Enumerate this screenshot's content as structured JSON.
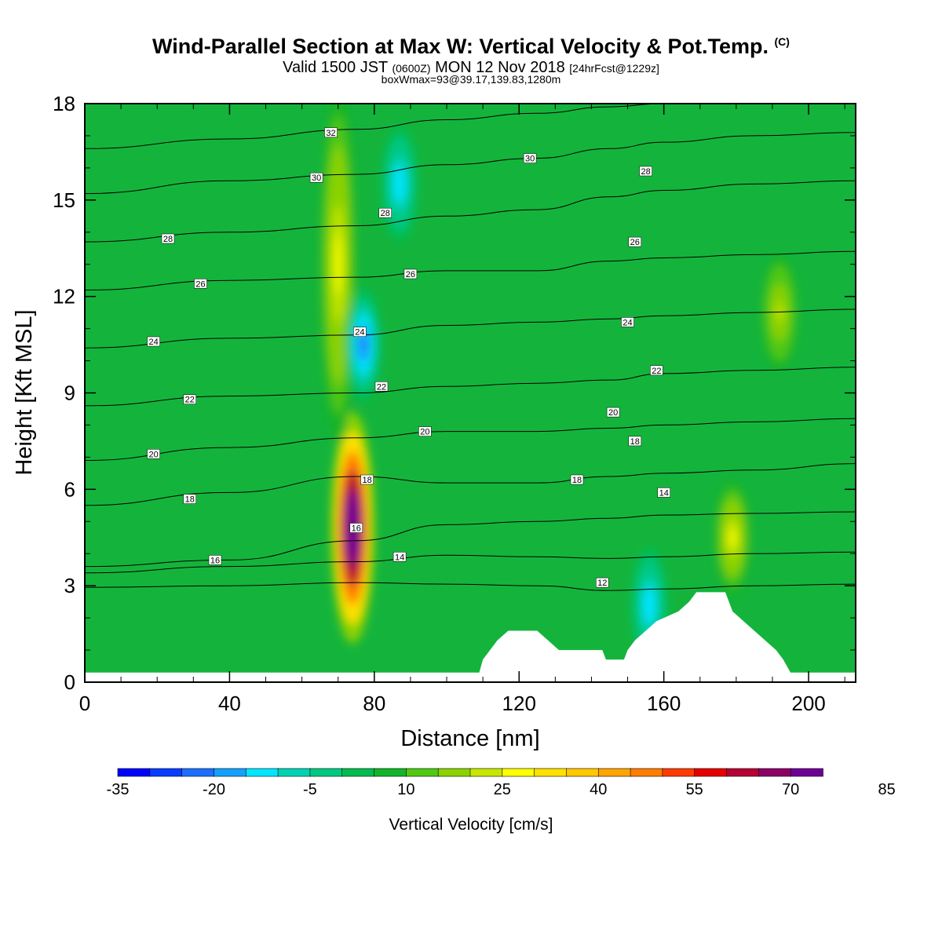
{
  "header": {
    "title_main": "Wind-Parallel Section at Max W: Vertical Velocity & Pot.Temp.",
    "title_copyright": "(C)",
    "valid_prefix": "Valid 1500 JST",
    "valid_utc": "(0600Z)",
    "valid_date": "MON 12 Nov 2018",
    "forecast": "[24hrFcst@1229z]",
    "boxw": "boxWmax=93@39.17,139.83,1280m"
  },
  "colors": {
    "levels": [
      "#0000ff",
      "#0a3cff",
      "#1e6eff",
      "#14a0ff",
      "#00e6ff",
      "#00d2b4",
      "#00c882",
      "#00bc50",
      "#14b428",
      "#50c814",
      "#8cd200",
      "#c8e600",
      "#ffff00",
      "#ffe100",
      "#ffc800",
      "#ffa500",
      "#ff7d00",
      "#ff3c00",
      "#e60000",
      "#b40032",
      "#8c0064",
      "#6e0096"
    ],
    "background_field": "#14b43c",
    "contour_line": "#000000"
  },
  "chart_data": {
    "type": "heatmap",
    "title": "Wind-Parallel Section at Max W: Vertical Velocity & Pot.Temp.",
    "xlabel": "Distance [nm]",
    "ylabel": "Height [Kft MSL]",
    "xlim": [
      0,
      213
    ],
    "ylim": [
      0,
      18
    ],
    "x_ticks": [
      0,
      40,
      80,
      120,
      160,
      200
    ],
    "y_ticks": [
      0,
      3,
      6,
      9,
      12,
      15,
      18
    ],
    "colorbar": {
      "label": "Vertical Velocity [cm/s]",
      "levels": [
        -35,
        -30,
        -25,
        -20,
        -15,
        -10,
        -5,
        0,
        5,
        10,
        15,
        20,
        25,
        30,
        35,
        40,
        45,
        50,
        55,
        60,
        65,
        70,
        75
      ],
      "tick_labels": [
        -35,
        -20,
        -5,
        10,
        25,
        40,
        55,
        70,
        85
      ]
    },
    "features": [
      {
        "kind": "updraft",
        "x": 74,
        "y": 4.8,
        "w_max": 93
      },
      {
        "kind": "updraft_column",
        "x": 70,
        "y_range": [
          8,
          18
        ],
        "w": 25
      },
      {
        "kind": "downdraft",
        "x": 77,
        "y": 10.5,
        "w": -25
      },
      {
        "kind": "downdraft",
        "x": 87,
        "y": 15.5,
        "w": -15
      },
      {
        "kind": "updraft",
        "x": 179,
        "y": 4.5,
        "w": 25
      },
      {
        "kind": "updraft",
        "x": 192,
        "y": 11.5,
        "w": 20
      },
      {
        "kind": "downdraft",
        "x": 156,
        "y": 2.4,
        "w": -15
      }
    ],
    "terrain": [
      {
        "x": 0,
        "top": 0.3
      },
      {
        "x": 109,
        "top": 0.3
      },
      {
        "x": 110,
        "top": 0.7
      },
      {
        "x": 114,
        "top": 1.3
      },
      {
        "x": 117,
        "top": 1.6
      },
      {
        "x": 125,
        "top": 1.6
      },
      {
        "x": 128,
        "top": 1.3
      },
      {
        "x": 131,
        "top": 1.0
      },
      {
        "x": 143,
        "top": 1.0
      },
      {
        "x": 144,
        "top": 0.7
      },
      {
        "x": 149,
        "top": 0.7
      },
      {
        "x": 150,
        "top": 1.0
      },
      {
        "x": 152,
        "top": 1.3
      },
      {
        "x": 155,
        "top": 1.6
      },
      {
        "x": 158,
        "top": 1.9
      },
      {
        "x": 164,
        "top": 2.2
      },
      {
        "x": 167,
        "top": 2.5
      },
      {
        "x": 169,
        "top": 2.8
      },
      {
        "x": 177,
        "top": 2.8
      },
      {
        "x": 179,
        "top": 2.2
      },
      {
        "x": 182,
        "top": 1.9
      },
      {
        "x": 185,
        "top": 1.6
      },
      {
        "x": 188,
        "top": 1.3
      },
      {
        "x": 191,
        "top": 1.0
      },
      {
        "x": 193,
        "top": 0.7
      },
      {
        "x": 195,
        "top": 0.3
      },
      {
        "x": 213,
        "top": 0.3
      }
    ],
    "theta_contours": [
      {
        "value": 12,
        "points": [
          [
            0,
            2.95
          ],
          [
            40,
            3.0
          ],
          [
            75,
            3.1
          ],
          [
            100,
            3.05
          ],
          [
            125,
            3.0
          ],
          [
            145,
            2.85
          ],
          [
            160,
            2.9
          ],
          [
            185,
            3.0
          ],
          [
            213,
            3.05
          ]
        ]
      },
      {
        "value": 14,
        "points": [
          [
            0,
            3.4
          ],
          [
            40,
            3.6
          ],
          [
            75,
            3.75
          ],
          [
            100,
            3.95
          ],
          [
            125,
            3.9
          ],
          [
            145,
            3.85
          ],
          [
            160,
            3.9
          ],
          [
            185,
            4.0
          ],
          [
            213,
            4.05
          ]
        ]
      },
      {
        "value": 16,
        "points": [
          [
            0,
            3.6
          ],
          [
            40,
            3.8
          ],
          [
            75,
            4.4
          ],
          [
            100,
            4.9
          ],
          [
            125,
            5.0
          ],
          [
            145,
            5.1
          ],
          [
            160,
            5.2
          ],
          [
            185,
            5.25
          ],
          [
            213,
            5.3
          ]
        ]
      },
      {
        "value": 18,
        "points": [
          [
            0,
            5.5
          ],
          [
            40,
            5.9
          ],
          [
            75,
            6.4
          ],
          [
            100,
            6.2
          ],
          [
            125,
            6.2
          ],
          [
            145,
            6.4
          ],
          [
            160,
            6.5
          ],
          [
            185,
            6.6
          ],
          [
            213,
            6.8
          ]
        ]
      },
      {
        "value": 20,
        "points": [
          [
            0,
            6.9
          ],
          [
            40,
            7.3
          ],
          [
            75,
            7.6
          ],
          [
            100,
            7.8
          ],
          [
            125,
            7.8
          ],
          [
            145,
            7.9
          ],
          [
            160,
            8.0
          ],
          [
            185,
            8.1
          ],
          [
            213,
            8.2
          ]
        ]
      },
      {
        "value": 22,
        "points": [
          [
            0,
            8.6
          ],
          [
            40,
            8.9
          ],
          [
            75,
            9.0
          ],
          [
            100,
            9.2
          ],
          [
            125,
            9.3
          ],
          [
            145,
            9.4
          ],
          [
            160,
            9.6
          ],
          [
            185,
            9.7
          ],
          [
            213,
            9.8
          ]
        ]
      },
      {
        "value": 24,
        "points": [
          [
            0,
            10.4
          ],
          [
            40,
            10.7
          ],
          [
            75,
            10.8
          ],
          [
            100,
            11.1
          ],
          [
            125,
            11.2
          ],
          [
            145,
            11.3
          ],
          [
            160,
            11.4
          ],
          [
            185,
            11.5
          ],
          [
            213,
            11.6
          ]
        ]
      },
      {
        "value": 26,
        "points": [
          [
            0,
            12.2
          ],
          [
            40,
            12.5
          ],
          [
            75,
            12.6
          ],
          [
            100,
            12.8
          ],
          [
            125,
            12.8
          ],
          [
            145,
            13.1
          ],
          [
            160,
            13.2
          ],
          [
            185,
            13.3
          ],
          [
            213,
            13.4
          ]
        ]
      },
      {
        "value": 28,
        "points": [
          [
            0,
            13.7
          ],
          [
            40,
            14.0
          ],
          [
            75,
            14.2
          ],
          [
            100,
            14.5
          ],
          [
            125,
            14.7
          ],
          [
            145,
            15.1
          ],
          [
            160,
            15.3
          ],
          [
            185,
            15.5
          ],
          [
            213,
            15.6
          ]
        ]
      },
      {
        "value": 30,
        "points": [
          [
            0,
            15.2
          ],
          [
            40,
            15.6
          ],
          [
            75,
            15.8
          ],
          [
            100,
            16.1
          ],
          [
            125,
            16.3
          ],
          [
            145,
            16.6
          ],
          [
            160,
            16.8
          ],
          [
            185,
            17.0
          ],
          [
            213,
            17.1
          ]
        ]
      },
      {
        "value": 32,
        "points": [
          [
            0,
            16.6
          ],
          [
            40,
            16.9
          ],
          [
            75,
            17.2
          ],
          [
            100,
            17.5
          ],
          [
            125,
            17.7
          ],
          [
            145,
            17.9
          ],
          [
            160,
            18.0
          ],
          [
            185,
            18.0
          ],
          [
            213,
            18.0
          ]
        ]
      }
    ],
    "contour_labels": [
      {
        "text": "32",
        "x": 68,
        "y": 17.1
      },
      {
        "text": "30",
        "x": 64,
        "y": 15.7
      },
      {
        "text": "30",
        "x": 123,
        "y": 16.3
      },
      {
        "text": "28",
        "x": 155,
        "y": 15.9
      },
      {
        "text": "28",
        "x": 83,
        "y": 14.6
      },
      {
        "text": "28",
        "x": 23,
        "y": 13.8
      },
      {
        "text": "26",
        "x": 152,
        "y": 13.7
      },
      {
        "text": "26",
        "x": 90,
        "y": 12.7
      },
      {
        "text": "26",
        "x": 32,
        "y": 12.4
      },
      {
        "text": "24",
        "x": 76,
        "y": 10.9
      },
      {
        "text": "24",
        "x": 150,
        "y": 11.2
      },
      {
        "text": "24",
        "x": 19,
        "y": 10.6
      },
      {
        "text": "22",
        "x": 82,
        "y": 9.2
      },
      {
        "text": "22",
        "x": 158,
        "y": 9.7
      },
      {
        "text": "22",
        "x": 29,
        "y": 8.8
      },
      {
        "text": "20",
        "x": 94,
        "y": 7.8
      },
      {
        "text": "20",
        "x": 146,
        "y": 8.4
      },
      {
        "text": "20",
        "x": 19,
        "y": 7.1
      },
      {
        "text": "18",
        "x": 78,
        "y": 6.3
      },
      {
        "text": "18",
        "x": 152,
        "y": 7.5
      },
      {
        "text": "18",
        "x": 136,
        "y": 6.3
      },
      {
        "text": "18",
        "x": 29,
        "y": 5.7
      },
      {
        "text": "16",
        "x": 75,
        "y": 4.8
      },
      {
        "text": "16",
        "x": 36,
        "y": 3.8
      },
      {
        "text": "14",
        "x": 87,
        "y": 3.9
      },
      {
        "text": "14",
        "x": 160,
        "y": 5.9
      },
      {
        "text": "12",
        "x": 143,
        "y": 3.1
      }
    ]
  }
}
